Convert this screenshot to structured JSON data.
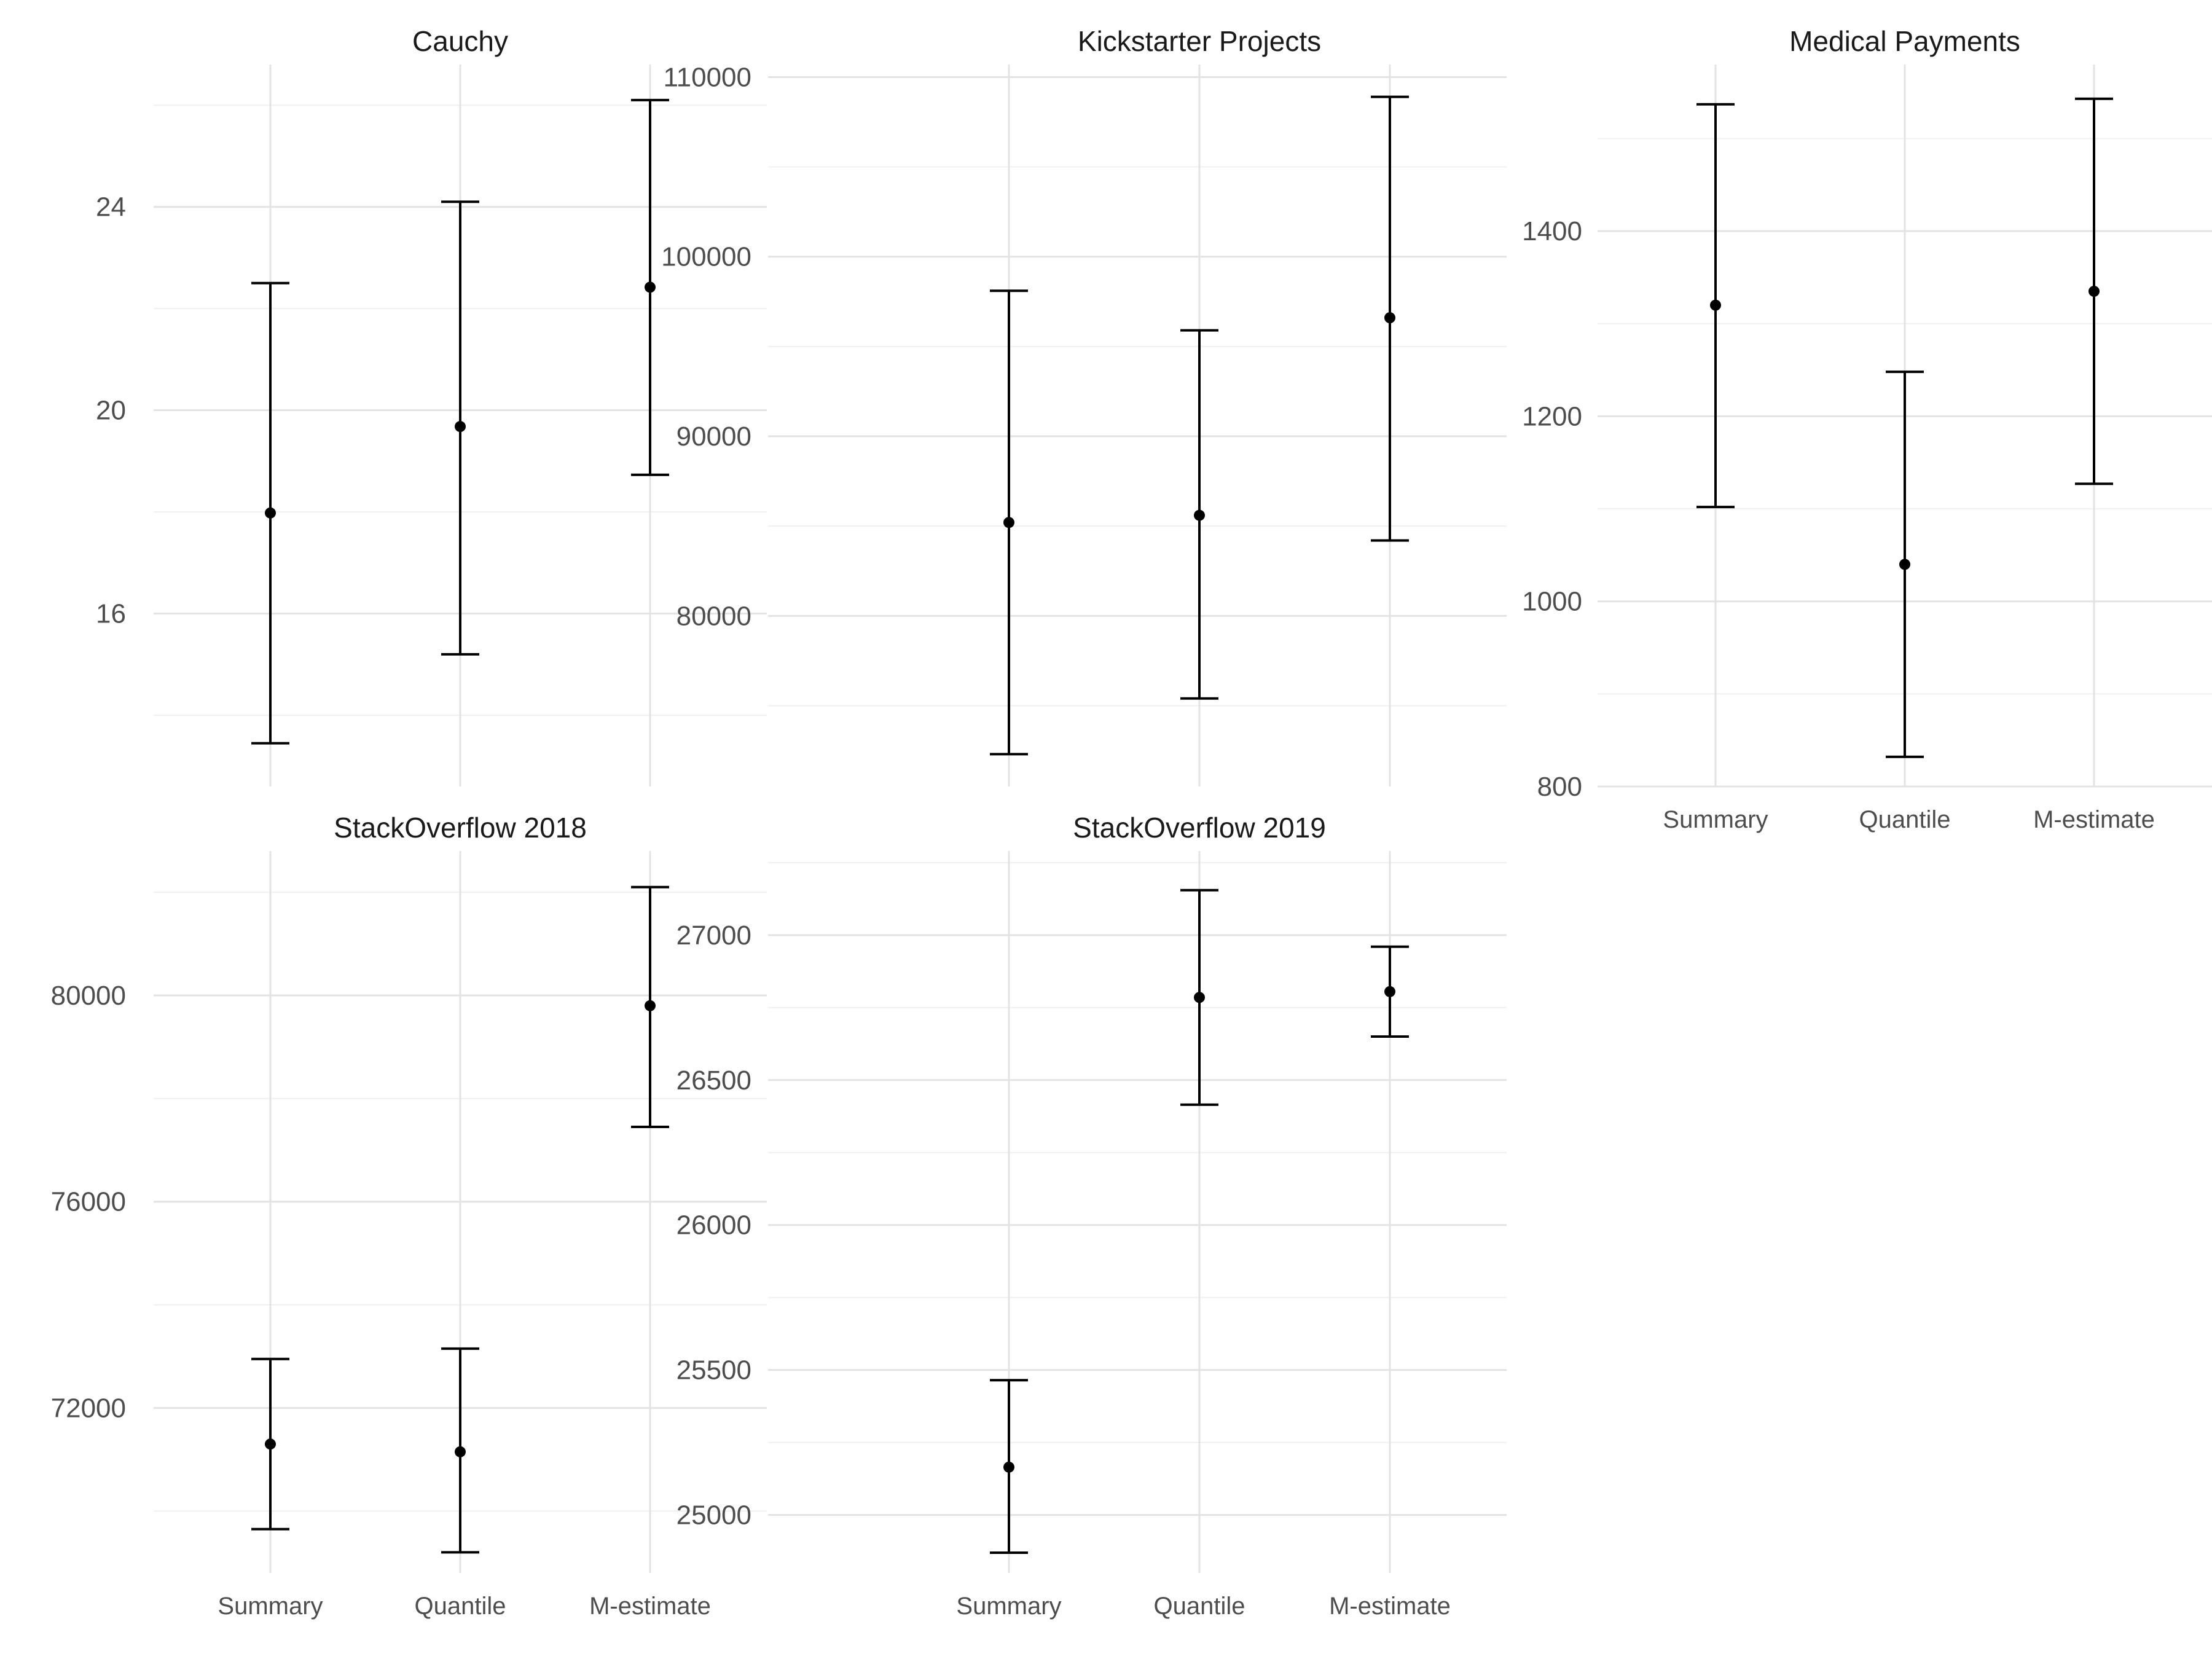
{
  "chart_data": {
    "type": "errorbar-facet",
    "categories": [
      "Summary",
      "Quantile",
      "M-estimate"
    ],
    "colors": {
      "background": "#ffffff",
      "grid_major": "#e3e3e3",
      "grid_minor": "#f0f0f0",
      "marks": "#000000",
      "text": "#1a1a1a",
      "tick_text": "#4d4d4d"
    },
    "panels": [
      {
        "title": "Cauchy",
        "ylim": [
          12.6,
          26.8
        ],
        "major_ticks": [
          16,
          20,
          24
        ],
        "minor_ticks": [
          14,
          18,
          22,
          26
        ],
        "tick_labels": [
          "16",
          "20",
          "24"
        ],
        "show_x_labels": false,
        "estimates": [
          17.98,
          19.68,
          22.42
        ],
        "lower": [
          13.45,
          15.2,
          18.73
        ],
        "upper": [
          22.5,
          24.1,
          26.1
        ]
      },
      {
        "title": "Kickstarter Projects",
        "ylim": [
          70500,
          110700
        ],
        "major_ticks": [
          80000,
          90000,
          100000,
          110000
        ],
        "minor_ticks": [
          75000,
          85000,
          95000,
          105000
        ],
        "tick_labels": [
          "80000",
          "90000",
          "100000",
          "110000"
        ],
        "show_x_labels": false,
        "estimates": [
          85200,
          85600,
          96600
        ],
        "lower": [
          72300,
          75400,
          84200
        ],
        "upper": [
          98100,
          95900,
          108900
        ]
      },
      {
        "title": "Medical Payments",
        "ylim": [
          800,
          1580
        ],
        "major_ticks": [
          800,
          1000,
          1200,
          1400
        ],
        "minor_ticks": [
          900,
          1100,
          1300,
          1500
        ],
        "tick_labels": [
          "800",
          "1000",
          "1200",
          "1400"
        ],
        "show_x_labels": true,
        "estimates": [
          1320,
          1040,
          1335
        ],
        "lower": [
          1102,
          832,
          1127
        ],
        "upper": [
          1537,
          1248,
          1543
        ]
      },
      {
        "title": "StackOverflow 2018",
        "ylim": [
          68800,
          82800
        ],
        "major_ticks": [
          72000,
          76000,
          80000
        ],
        "minor_ticks": [
          70000,
          74000,
          78000,
          82000
        ],
        "tick_labels": [
          "72000",
          "76000",
          "80000"
        ],
        "show_x_labels": true,
        "estimates": [
          71300,
          71150,
          79800
        ],
        "lower": [
          69650,
          69200,
          77450
        ],
        "upper": [
          72950,
          73150,
          82100
        ]
      },
      {
        "title": "StackOverflow 2019",
        "ylim": [
          24800,
          27290
        ],
        "major_ticks": [
          25000,
          25500,
          26000,
          26500,
          27000
        ],
        "minor_ticks": [
          25250,
          25750,
          26250,
          26750,
          27250
        ],
        "tick_labels": [
          "25000",
          "25500",
          "26000",
          "26500",
          "27000"
        ],
        "show_x_labels": true,
        "estimates": [
          25165,
          26785,
          26805
        ],
        "lower": [
          24870,
          26415,
          26650
        ],
        "upper": [
          25465,
          27155,
          26960
        ]
      }
    ]
  }
}
